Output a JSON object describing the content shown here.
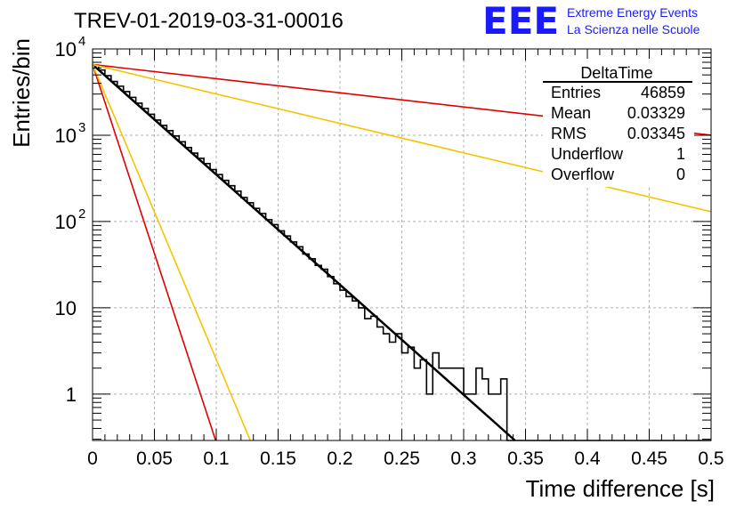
{
  "header": {
    "run_title": "TREV-01-2019-03-31-00016",
    "logo_mark": "EEE",
    "logo_line1": "Extreme Energy Events",
    "logo_line2": "La Scienza nelle Scuole"
  },
  "colors": {
    "histogram": "#000000",
    "fit_line": "#000000",
    "red_reference": "#e00000",
    "yellow_reference": "#f5c400",
    "grid": "#b0b0b0",
    "logo": "#1a1aff"
  },
  "stats_box": {
    "title": "DeltaTime",
    "rows": [
      {
        "label": "Entries",
        "value": "46859"
      },
      {
        "label": "Mean",
        "value": "0.03329"
      },
      {
        "label": "RMS",
        "value": "0.03345"
      },
      {
        "label": "Underflow",
        "value": "1"
      },
      {
        "label": "Overflow",
        "value": "0"
      }
    ]
  },
  "chart_data": {
    "type": "histogram",
    "xlabel": "Time difference [s]",
    "ylabel": "Entries/bin",
    "x_range": [
      0,
      0.5
    ],
    "y_range": [
      0.29,
      10000
    ],
    "y_scale": "log",
    "grid": true,
    "x_ticks": [
      "0",
      "0.05",
      "0.1",
      "0.15",
      "0.2",
      "0.25",
      "0.3",
      "0.35",
      "0.4",
      "0.45",
      "0.5"
    ],
    "y_ticks": [
      {
        "value": 1,
        "base": "1",
        "exp": ""
      },
      {
        "value": 10,
        "base": "10",
        "exp": ""
      },
      {
        "value": 100,
        "base": "10",
        "exp": "2"
      },
      {
        "value": 1000,
        "base": "10",
        "exp": "3"
      },
      {
        "value": 10000,
        "base": "10",
        "exp": "4"
      }
    ],
    "histogram": {
      "bin_width": 0.005,
      "x_start": 0.0,
      "counts": [
        6500,
        5700,
        4900,
        4200,
        3700,
        3200,
        2750,
        2350,
        2050,
        1750,
        1500,
        1300,
        1130,
        980,
        840,
        720,
        620,
        540,
        470,
        400,
        350,
        300,
        260,
        225,
        190,
        165,
        142,
        124,
        105,
        92,
        78,
        68,
        58,
        51,
        42,
        37,
        31,
        28,
        23,
        19,
        16,
        13.5,
        12,
        10,
        7.5,
        8,
        6,
        5,
        4,
        5,
        3,
        3.5,
        2,
        2.5,
        1,
        3,
        2,
        2,
        2,
        2,
        1,
        1,
        2,
        1.5,
        1,
        1,
        1.5,
        0,
        0.2,
        0.2,
        0.2,
        0.2,
        0.2,
        0.2,
        0.2,
        0.2,
        0.2,
        0.2,
        0.2,
        0.2,
        0.2,
        0.2,
        0.2,
        0.2,
        0.2,
        0.2,
        0.2,
        0.2,
        0.2,
        0.2,
        0.2,
        0.2,
        0.2,
        0.2,
        0.2,
        0.2,
        0.2,
        0.2,
        0.2,
        0.2
      ]
    },
    "curves": [
      {
        "color_key": "fit_line",
        "points": [
          [
            0,
            6600
          ],
          [
            0.3415,
            0.29
          ]
        ],
        "width": 2.5
      },
      {
        "color_key": "red_reference",
        "points": [
          [
            0,
            6600
          ],
          [
            0.0995,
            0.29
          ]
        ],
        "width": 1.6
      },
      {
        "color_key": "red_reference",
        "points": [
          [
            0,
            6600
          ],
          [
            0.5,
            1000
          ]
        ],
        "width": 1.6
      },
      {
        "color_key": "yellow_reference",
        "points": [
          [
            0,
            6600
          ],
          [
            0.1275,
            0.29
          ]
        ],
        "width": 1.6
      },
      {
        "color_key": "yellow_reference",
        "points": [
          [
            0,
            6600
          ],
          [
            0.5,
            130
          ]
        ],
        "width": 1.6
      }
    ]
  }
}
